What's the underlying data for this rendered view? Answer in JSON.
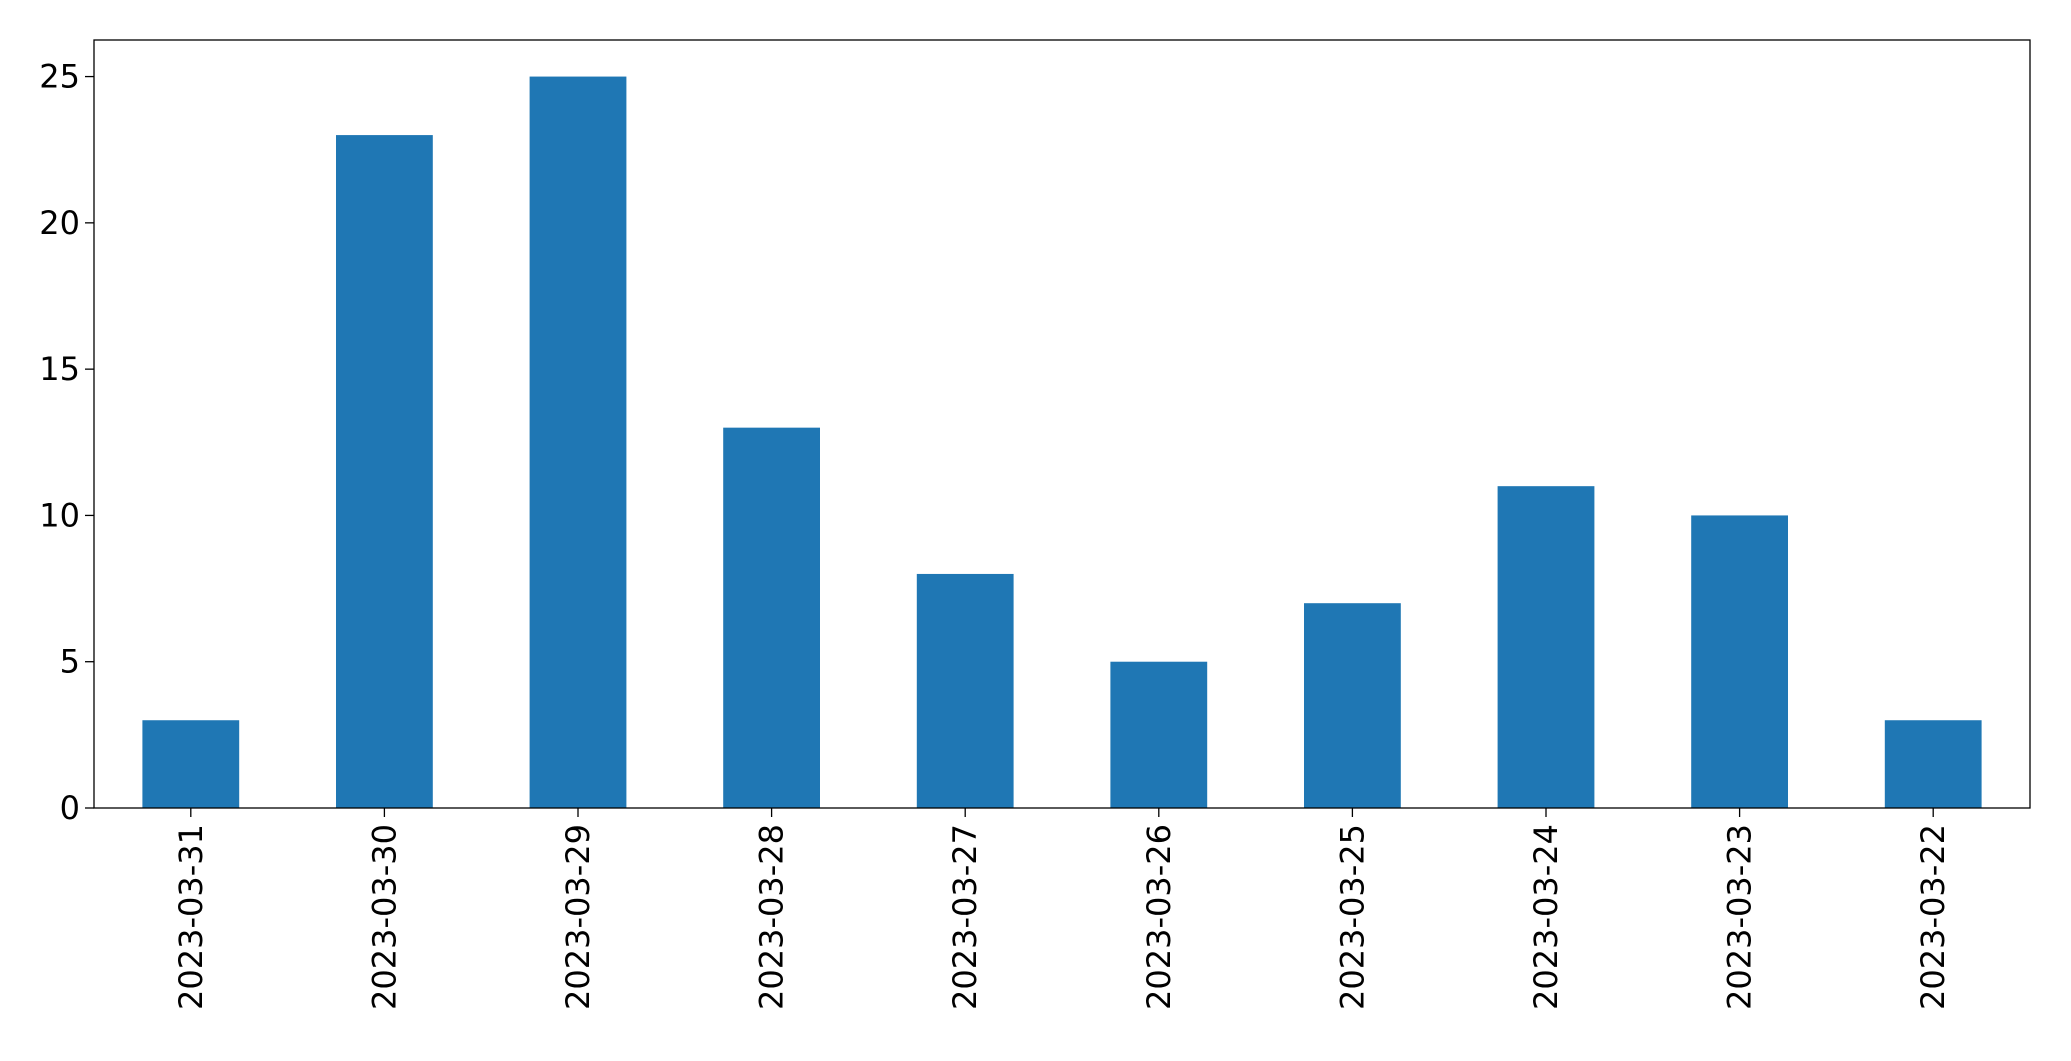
{
  "chart_data": {
    "type": "bar",
    "categories": [
      "2023-03-31",
      "2023-03-30",
      "2023-03-29",
      "2023-03-28",
      "2023-03-27",
      "2023-03-26",
      "2023-03-25",
      "2023-03-24",
      "2023-03-23",
      "2023-03-22"
    ],
    "values": [
      3,
      23,
      25,
      13,
      8,
      5,
      7,
      11,
      10,
      3
    ],
    "color": "#1f77b4",
    "ylim": [
      0,
      26.25
    ],
    "yticks": [
      0,
      5,
      10,
      15,
      20,
      25
    ],
    "grid": false
  }
}
